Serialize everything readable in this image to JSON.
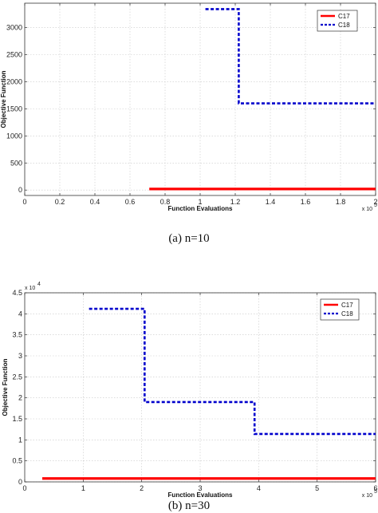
{
  "chart_data": [
    {
      "type": "line",
      "caption": "(a)  n=10",
      "xlabel": "Function Evaluations",
      "ylabel": "Objective Function",
      "x_multiplier": "x 10",
      "x_multiplier_exp": "5",
      "y_multiplier": "",
      "y_multiplier_exp": "",
      "xlim": [
        0,
        2
      ],
      "ylim": [
        -100,
        3450
      ],
      "xticks": [
        0,
        0.2,
        0.4,
        0.6,
        0.8,
        1,
        1.2,
        1.4,
        1.6,
        1.8,
        2
      ],
      "xtick_labels": [
        "0",
        "0.2",
        "0.4",
        "0.6",
        "0.8",
        "1",
        "1.2",
        "1.4",
        "1.6",
        "1.8",
        "2"
      ],
      "yticks": [
        0,
        500,
        1000,
        1500,
        2000,
        2500,
        3000
      ],
      "ytick_labels": [
        "0",
        "500",
        "1000",
        "1500",
        "2000",
        "2500",
        "3000"
      ],
      "grid": true,
      "legend_position": "top-right",
      "series": [
        {
          "name": "C17",
          "color": "#ff0000",
          "style": "solid",
          "x": [
            0.71,
            2.0
          ],
          "y": [
            20,
            20
          ]
        },
        {
          "name": "C18",
          "color": "#0000cc",
          "style": "dashed",
          "x": [
            1.03,
            1.22,
            1.22,
            2.0
          ],
          "y": [
            3340,
            3340,
            1600,
            1600
          ]
        }
      ]
    },
    {
      "type": "line",
      "caption": "(b)  n=30",
      "xlabel": "Function Evaluations",
      "ylabel": "Objective Function",
      "x_multiplier": "x 10",
      "x_multiplier_exp": "5",
      "y_multiplier": "x 10",
      "y_multiplier_exp": "4",
      "xlim": [
        0,
        6
      ],
      "ylim": [
        0,
        4.5
      ],
      "xticks": [
        0,
        1,
        2,
        3,
        4,
        5,
        6
      ],
      "xtick_labels": [
        "0",
        "1",
        "2",
        "3",
        "4",
        "5",
        "6"
      ],
      "yticks": [
        0,
        0.5,
        1,
        1.5,
        2,
        2.5,
        3,
        3.5,
        4,
        4.5
      ],
      "ytick_labels": [
        "0",
        "0.5",
        "1",
        "1.5",
        "2",
        "2.5",
        "3",
        "3.5",
        "4",
        "4.5"
      ],
      "grid": true,
      "legend_position": "top-right",
      "series": [
        {
          "name": "C17",
          "color": "#ff0000",
          "style": "solid",
          "x": [
            0.3,
            6.0
          ],
          "y": [
            0.08,
            0.08
          ]
        },
        {
          "name": "C18",
          "color": "#0000cc",
          "style": "dashed",
          "x": [
            1.1,
            2.05,
            2.05,
            3.93,
            3.93,
            6.0
          ],
          "y": [
            4.12,
            4.12,
            1.9,
            1.9,
            1.14,
            1.14
          ]
        }
      ]
    }
  ]
}
